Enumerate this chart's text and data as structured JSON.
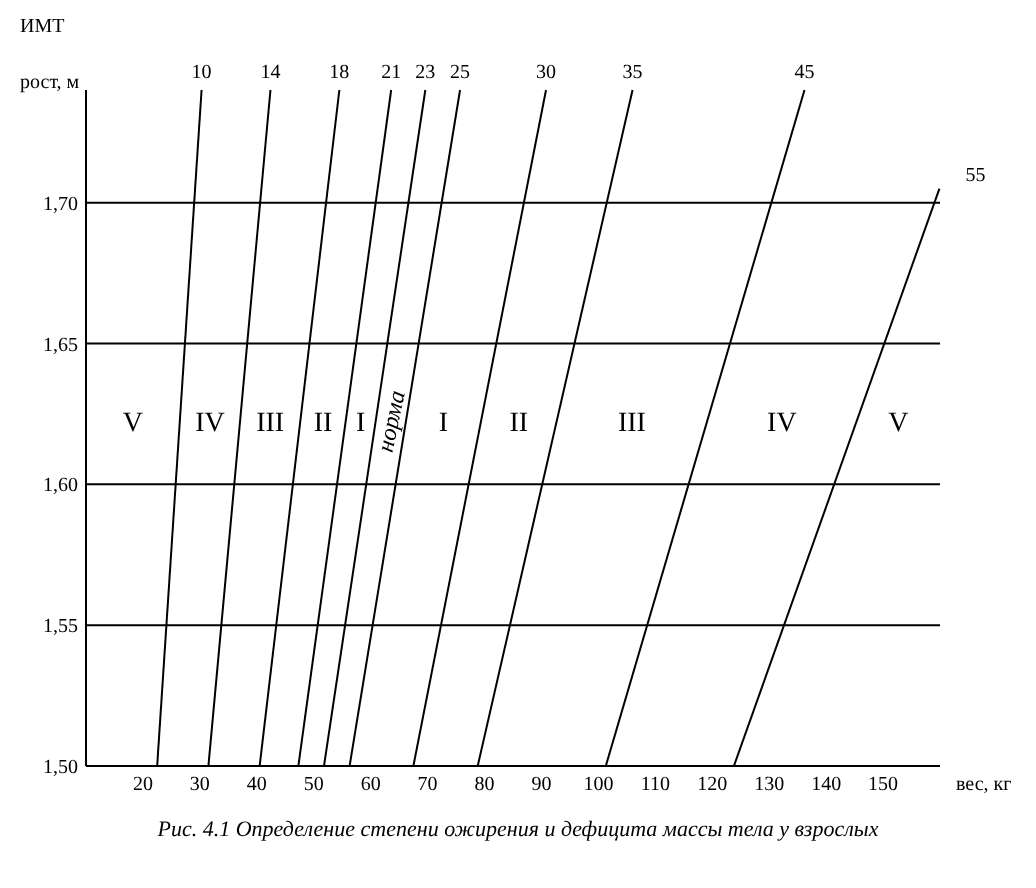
{
  "chart_data": {
    "type": "line",
    "title": "ИМТ",
    "ylabel": "рост, м",
    "xlabel": "вес, кг",
    "xlim": [
      10,
      160
    ],
    "xticks": [
      20,
      30,
      40,
      50,
      60,
      70,
      80,
      90,
      100,
      110,
      120,
      130,
      140,
      150
    ],
    "ylim": [
      1.5,
      1.74
    ],
    "yticks": [
      {
        "value": 1.5,
        "label": "1,50"
      },
      {
        "value": 1.55,
        "label": "1,55"
      },
      {
        "value": 1.6,
        "label": "1,60"
      },
      {
        "value": 1.65,
        "label": "1,65"
      },
      {
        "value": 1.7,
        "label": "1,70"
      }
    ],
    "grid": "y",
    "marker": "none",
    "line_style": "solid",
    "series": [
      {
        "name": "10",
        "color": "#000000",
        "x": [
          22.5,
          30.3
        ],
        "values": [
          1.5,
          1.74
        ]
      },
      {
        "name": "14",
        "color": "#000000",
        "x": [
          31.5,
          42.4
        ],
        "values": [
          1.5,
          1.74
        ]
      },
      {
        "name": "18",
        "color": "#000000",
        "x": [
          40.5,
          54.5
        ],
        "values": [
          1.5,
          1.74
        ]
      },
      {
        "name": "21",
        "color": "#000000",
        "x": [
          47.3,
          63.6
        ],
        "values": [
          1.5,
          1.74
        ]
      },
      {
        "name": "23",
        "color": "#000000",
        "x": [
          51.8,
          69.6
        ],
        "values": [
          1.5,
          1.74
        ]
      },
      {
        "name": "25",
        "color": "#000000",
        "x": [
          56.3,
          75.7
        ],
        "values": [
          1.5,
          1.74
        ]
      },
      {
        "name": "30",
        "color": "#000000",
        "x": [
          67.5,
          90.8
        ],
        "values": [
          1.5,
          1.74
        ]
      },
      {
        "name": "35",
        "color": "#000000",
        "x": [
          78.8,
          106
        ],
        "values": [
          1.5,
          1.74
        ]
      },
      {
        "name": "45",
        "color": "#000000",
        "x": [
          101.3,
          136.2
        ],
        "values": [
          1.5,
          1.74
        ]
      },
      {
        "name": "55",
        "color": "#000000",
        "x": [
          123.8,
          159.9
        ],
        "values": [
          1.5,
          1.705
        ]
      }
    ],
    "annotations": [
      "V",
      "IV",
      "III",
      "II",
      "I",
      "норма",
      "I",
      "II",
      "III",
      "IV",
      "V",
      "Рис. 4.1 Определение степени ожирения и дефицита массы тела у взрослых"
    ]
  }
}
